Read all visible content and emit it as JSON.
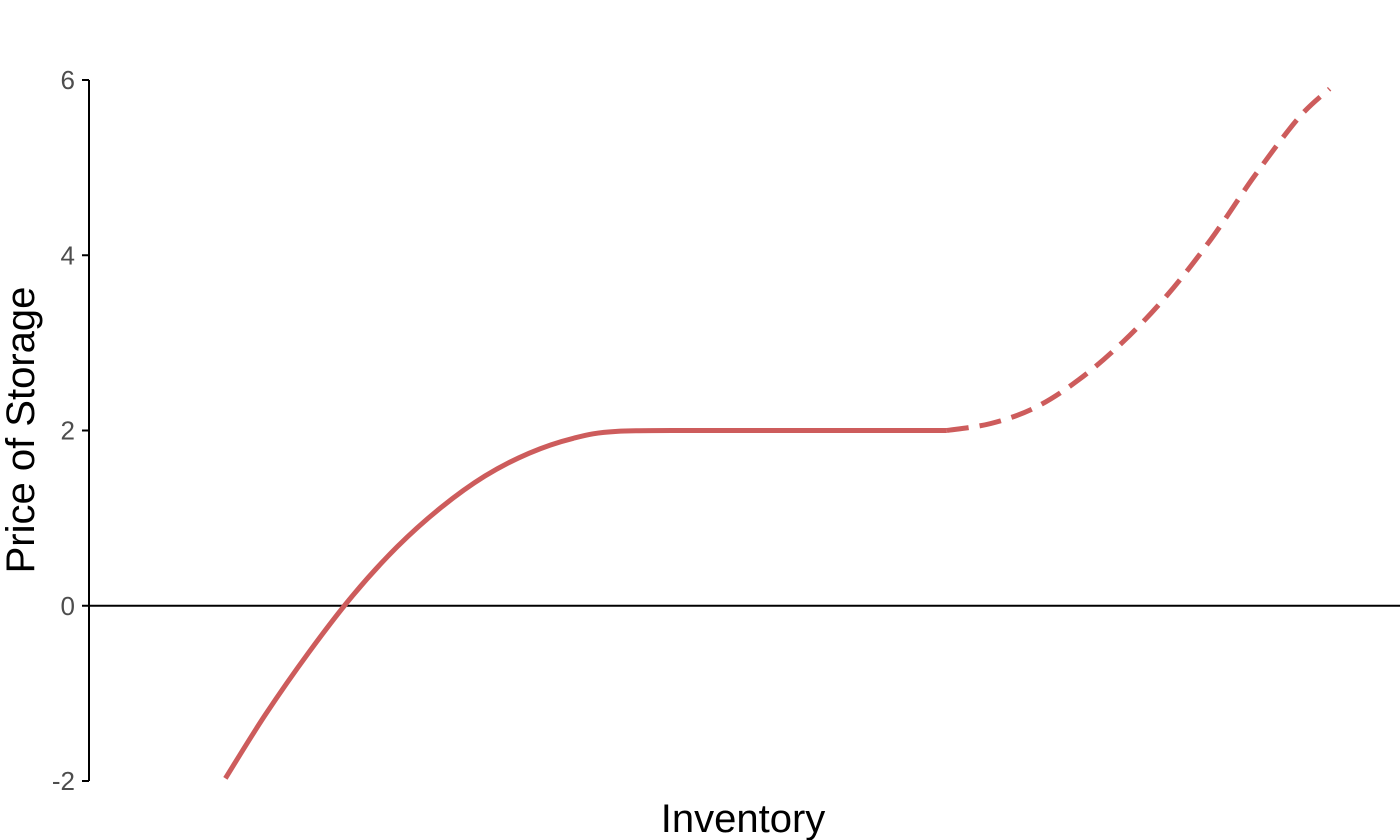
{
  "chart_data": {
    "type": "line",
    "title": "",
    "xlabel": "Inventory",
    "ylabel": "Price of Storage",
    "ylim": [
      -2,
      6
    ],
    "xlim": [
      0,
      14.9
    ],
    "x_ticks_shown": false,
    "y_ticks": [
      -2,
      0,
      2,
      4,
      6
    ],
    "y_tick_labels": [
      "-2",
      "0",
      "2",
      "4",
      "6"
    ],
    "grid": false,
    "reference_line_y": 0,
    "line_color": "#cd5c5c",
    "series": [
      {
        "style": "solid",
        "color": "#cd5c5c",
        "x": [
          1.55,
          2.0,
          2.5,
          3.0,
          3.5,
          4.0,
          4.5,
          5.0,
          5.5,
          6.0,
          7.0,
          8.0,
          9.0,
          9.75
        ],
        "y": [
          -1.97,
          -1.25,
          -0.53,
          0.12,
          0.67,
          1.12,
          1.48,
          1.74,
          1.91,
          1.99,
          2.0,
          2.0,
          2.0,
          2.0
        ]
      },
      {
        "style": "dashed",
        "color": "#cd5c5c",
        "x": [
          9.75,
          10.25,
          10.75,
          11.25,
          11.75,
          12.25,
          12.75,
          13.25,
          13.75,
          14.1
        ],
        "y": [
          2.0,
          2.08,
          2.26,
          2.58,
          3.01,
          3.54,
          4.18,
          4.91,
          5.57,
          5.9
        ]
      }
    ]
  }
}
